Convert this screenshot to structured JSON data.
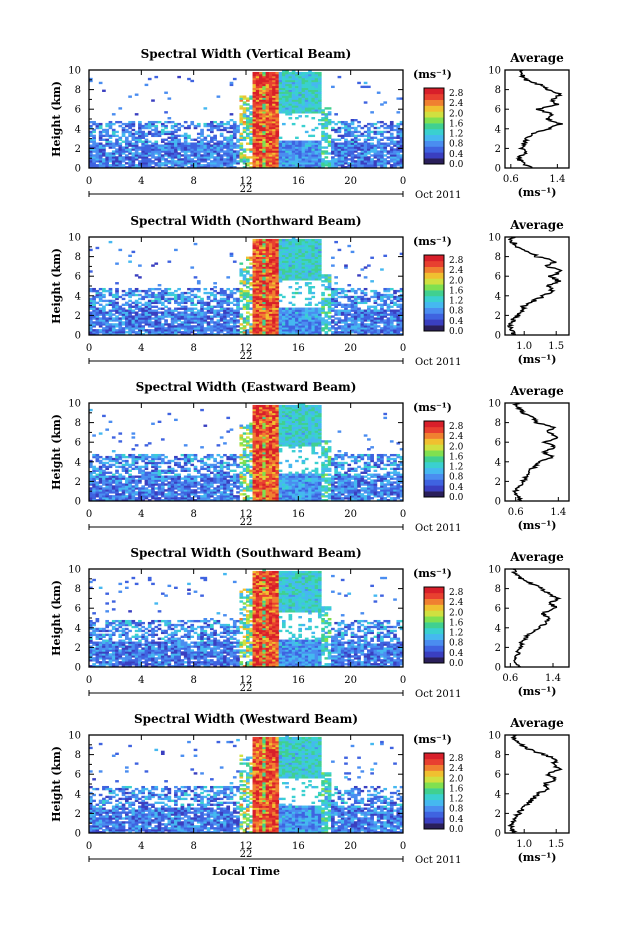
{
  "colors": {
    "colormap": [
      "#2a1f5a",
      "#3a3fc0",
      "#3f63e0",
      "#4a8df0",
      "#45b8f0",
      "#3ad0d0",
      "#40d090",
      "#80e050",
      "#d0e040",
      "#f0c030",
      "#f08030",
      "#e84030",
      "#d81f2a"
    ],
    "profile_line": "#000000",
    "frame": "#000000"
  },
  "chart_data": [
    {
      "type": "heatmap",
      "title": "Spectral Width (Vertical Beam)",
      "xlabel": "",
      "ylabel": "Height (km)",
      "xticks": [
        "0",
        "4",
        "8",
        "12",
        "16",
        "20",
        "0"
      ],
      "yticks": [
        "0",
        "2",
        "4",
        "6",
        "8",
        "10"
      ],
      "xlim": [
        0,
        24
      ],
      "ylim": [
        0,
        10
      ],
      "date_day": "22",
      "date_month_year": "Oct 2011",
      "colorbar": {
        "unit": "(ms⁻¹)",
        "ticks": [
          "0.0",
          "0.4",
          "0.8",
          "1.2",
          "1.6",
          "2.0",
          "2.4",
          "2.8"
        ],
        "range": [
          0,
          3
        ]
      },
      "profile": {
        "title": "Average",
        "xlabel": "(ms⁻¹)",
        "xticks": [
          "0.6",
          "1.4"
        ],
        "xlim": [
          0.5,
          1.6
        ],
        "h": [
          0,
          0.5,
          1,
          1.5,
          2,
          2.5,
          3,
          3.5,
          4,
          4.5,
          5,
          5.5,
          6,
          6.5,
          7,
          7.5,
          8,
          8.5,
          9,
          9.5,
          10
        ],
        "w": [
          0.95,
          0.8,
          0.72,
          0.85,
          0.78,
          0.82,
          0.86,
          0.95,
          1.25,
          1.45,
          1.2,
          1.3,
          1.05,
          1.4,
          1.3,
          1.45,
          1.25,
          1.1,
          0.85,
          0.8,
          0.75
        ]
      }
    },
    {
      "type": "heatmap",
      "title": "Spectral Width (Northward Beam)",
      "xlabel": "",
      "ylabel": "Height (km)",
      "xticks": [
        "0",
        "4",
        "8",
        "12",
        "16",
        "20",
        "0"
      ],
      "yticks": [
        "0",
        "2",
        "4",
        "6",
        "8",
        "10"
      ],
      "xlim": [
        0,
        24
      ],
      "ylim": [
        0,
        10
      ],
      "date_day": "22",
      "date_month_year": "Oct 2011",
      "colorbar": {
        "unit": "(ms⁻¹)",
        "ticks": [
          "0.0",
          "0.4",
          "0.8",
          "1.2",
          "1.6",
          "2.0",
          "2.4",
          "2.8"
        ],
        "range": [
          0,
          3
        ]
      },
      "profile": {
        "title": "Average",
        "xlabel": "(ms⁻¹)",
        "xticks": [
          "1.0",
          "1.5"
        ],
        "xlim": [
          0.7,
          1.7
        ],
        "h": [
          0,
          0.5,
          1,
          1.5,
          2,
          2.5,
          3,
          3.5,
          4,
          4.5,
          5,
          5.5,
          6,
          6.5,
          7,
          7.5,
          8,
          8.5,
          9,
          9.5,
          10
        ],
        "w": [
          0.85,
          0.8,
          0.78,
          0.82,
          0.9,
          0.95,
          1.0,
          1.15,
          1.3,
          1.45,
          1.35,
          1.55,
          1.4,
          1.6,
          1.35,
          1.5,
          1.2,
          1.05,
          0.9,
          0.82,
          0.8
        ]
      }
    },
    {
      "type": "heatmap",
      "title": "Spectral Width (Eastward Beam)",
      "xlabel": "",
      "ylabel": "Height (km)",
      "xticks": [
        "0",
        "4",
        "8",
        "12",
        "16",
        "20",
        "0"
      ],
      "yticks": [
        "0",
        "2",
        "4",
        "6",
        "8",
        "10"
      ],
      "xlim": [
        0,
        24
      ],
      "ylim": [
        0,
        10
      ],
      "date_day": "22",
      "date_month_year": "Oct 2011",
      "colorbar": {
        "unit": "(ms⁻¹)",
        "ticks": [
          "0.0",
          "0.4",
          "0.8",
          "1.2",
          "1.6",
          "2.0",
          "2.4",
          "2.8"
        ],
        "range": [
          0,
          3
        ]
      },
      "profile": {
        "title": "Average",
        "xlabel": "(ms⁻¹)",
        "xticks": [
          "0.6",
          "1.4"
        ],
        "xlim": [
          0.4,
          1.6
        ],
        "h": [
          0,
          0.5,
          1,
          1.5,
          2,
          2.5,
          3,
          3.5,
          4,
          4.5,
          5,
          5.5,
          6,
          6.5,
          7,
          7.5,
          8,
          8.5,
          9,
          9.5,
          10
        ],
        "w": [
          0.7,
          0.62,
          0.6,
          0.68,
          0.75,
          0.8,
          0.85,
          0.95,
          1.05,
          1.3,
          1.1,
          1.35,
          1.15,
          1.4,
          1.2,
          1.3,
          1.0,
          0.95,
          0.75,
          0.65,
          0.6
        ]
      }
    },
    {
      "type": "heatmap",
      "title": "Spectral Width (Southward Beam)",
      "xlabel": "",
      "ylabel": "Height (km)",
      "xticks": [
        "0",
        "4",
        "8",
        "12",
        "16",
        "20",
        "0"
      ],
      "yticks": [
        "0",
        "2",
        "4",
        "6",
        "8",
        "10"
      ],
      "xlim": [
        0,
        24
      ],
      "ylim": [
        0,
        10
      ],
      "date_day": "22",
      "date_month_year": "Oct 2011",
      "colorbar": {
        "unit": "(ms⁻¹)",
        "ticks": [
          "0.0",
          "0.4",
          "0.8",
          "1.2",
          "1.6",
          "2.0",
          "2.4",
          "2.8"
        ],
        "range": [
          0,
          3
        ]
      },
      "profile": {
        "title": "Average",
        "xlabel": "(ms⁻¹)",
        "xticks": [
          "0.6",
          "1.4"
        ],
        "xlim": [
          0.5,
          1.7
        ],
        "h": [
          0,
          0.5,
          1,
          1.5,
          2,
          2.5,
          3,
          3.5,
          4,
          4.5,
          5,
          5.5,
          6,
          6.5,
          7,
          7.5,
          8,
          8.5,
          9,
          9.5,
          10
        ],
        "w": [
          0.78,
          0.72,
          0.7,
          0.75,
          0.8,
          0.82,
          0.88,
          1.0,
          1.15,
          1.25,
          1.3,
          1.2,
          1.45,
          1.35,
          1.5,
          1.3,
          1.2,
          1.0,
          0.8,
          0.7,
          0.65
        ]
      }
    },
    {
      "type": "heatmap",
      "title": "Spectral Width (Westward Beam)",
      "xlabel": "Local Time",
      "ylabel": "Height (km)",
      "xticks": [
        "0",
        "4",
        "8",
        "12",
        "16",
        "20",
        "0"
      ],
      "yticks": [
        "0",
        "2",
        "4",
        "6",
        "8",
        "10"
      ],
      "xlim": [
        0,
        24
      ],
      "ylim": [
        0,
        10
      ],
      "date_day": "22",
      "date_month_year": "Oct 2011",
      "colorbar": {
        "unit": "(ms⁻¹)",
        "ticks": [
          "0.0",
          "0.4",
          "0.8",
          "1.2",
          "1.6",
          "2.0",
          "2.4",
          "2.8"
        ],
        "range": [
          0,
          3
        ]
      },
      "profile": {
        "title": "Average",
        "xlabel": "(ms⁻¹)",
        "xticks": [
          "1.0",
          "1.5"
        ],
        "xlim": [
          0.7,
          1.7
        ],
        "h": [
          0,
          0.5,
          1,
          1.5,
          2,
          2.5,
          3,
          3.5,
          4,
          4.5,
          5,
          5.5,
          6,
          6.5,
          7,
          7.5,
          8,
          8.5,
          9,
          9.5,
          10
        ],
        "w": [
          0.85,
          0.8,
          0.8,
          0.85,
          0.92,
          0.98,
          1.05,
          1.15,
          1.2,
          1.4,
          1.3,
          1.5,
          1.35,
          1.55,
          1.45,
          1.5,
          1.3,
          1.1,
          0.95,
          0.85,
          0.82
        ]
      }
    }
  ]
}
